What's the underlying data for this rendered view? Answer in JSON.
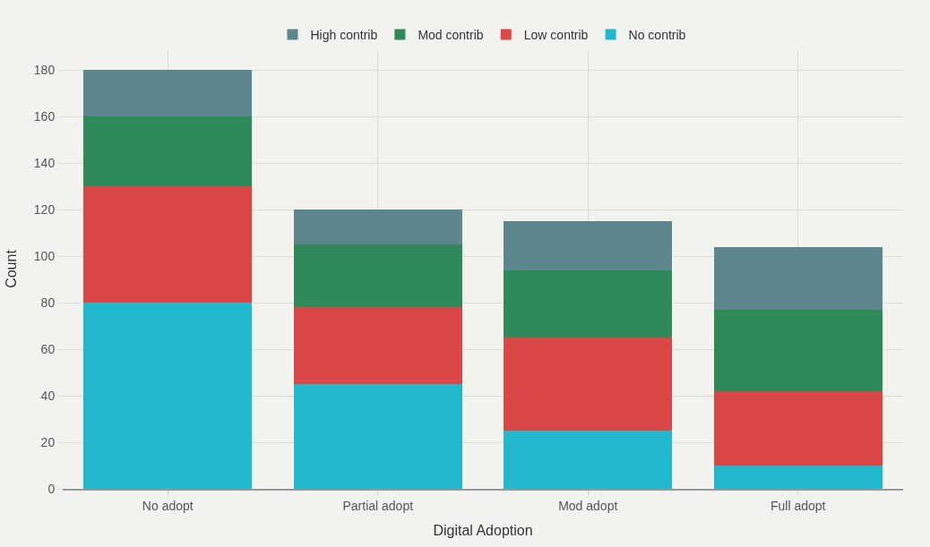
{
  "chart_data": {
    "type": "bar",
    "stacked": true,
    "xlabel": "Digital Adoption",
    "ylabel": "Count",
    "categories": [
      "No adopt",
      "Partial adopt",
      "Mod adopt",
      "Full adopt"
    ],
    "series": [
      {
        "name": "No contrib",
        "color": "#21b8cd",
        "values": [
          80,
          45,
          25,
          10
        ]
      },
      {
        "name": "Low contrib",
        "color": "#db4647",
        "values": [
          50,
          33,
          40,
          32
        ]
      },
      {
        "name": "Mod contrib",
        "color": "#2e8a58",
        "values": [
          30,
          27,
          29,
          35
        ]
      },
      {
        "name": "High contrib",
        "color": "#5e878d",
        "values": [
          20,
          15,
          21,
          27
        ]
      }
    ],
    "ylim": [
      0,
      189
    ],
    "yticks": [
      0,
      20,
      40,
      60,
      80,
      100,
      120,
      140,
      160,
      180
    ],
    "grid": true,
    "legend": "top"
  }
}
